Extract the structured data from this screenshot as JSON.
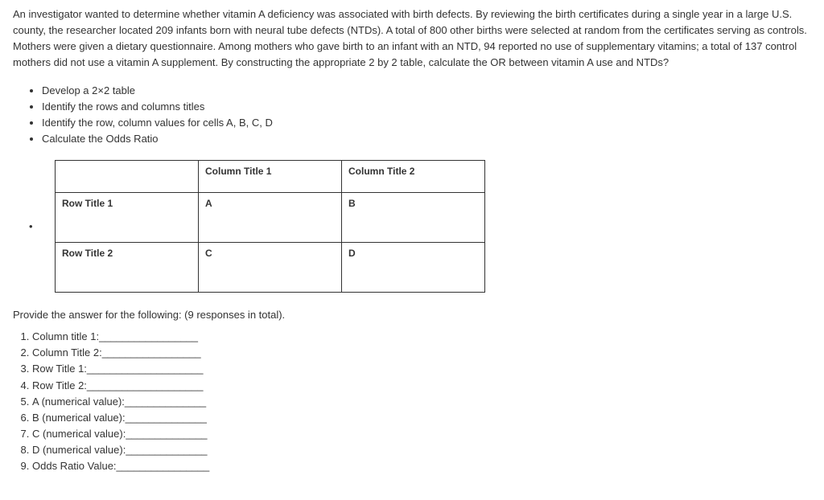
{
  "intro": "An investigator wanted to determine whether vitamin A deficiency was associated with birth defects. By reviewing the birth certificates during a single year in a large U.S. county, the researcher located 209 infants born with neural tube defects (NTDs). A total of 800 other births were selected at random from the certificates serving as controls. Mothers were given a dietary questionnaire. Among mothers who gave birth to an infant with an NTD, 94 reported no use of supplementary vitamins; a total of 137 control mothers did not use a vitamin A supplement. By constructing the appropriate 2 by 2 table, calculate the OR between vitamin A use and NTDs?",
  "bullets": [
    "Develop a 2×2 table",
    "Identify the rows and columns titles",
    "Identify the row, column values for cells A, B, C, D",
    "Calculate the Odds Ratio"
  ],
  "table": {
    "col1_header": "Column Title 1",
    "col2_header": "Column Title 2",
    "row1_header": "Row Title 1",
    "row2_header": "Row Title 2",
    "cellA": "A",
    "cellB": "B",
    "cellC": "C",
    "cellD": "D"
  },
  "provide_text": "Provide the answer for the following: (9 responses in total).",
  "answers": [
    "Column title 1:_________________",
    "Column Title 2:_________________",
    "Row Title 1:____________________",
    "Row Title 2:____________________",
    "A (numerical value):______________",
    "B (numerical value):______________",
    "C (numerical value):______________",
    "D (numerical value):______________",
    "Odds Ratio Value:________________"
  ]
}
